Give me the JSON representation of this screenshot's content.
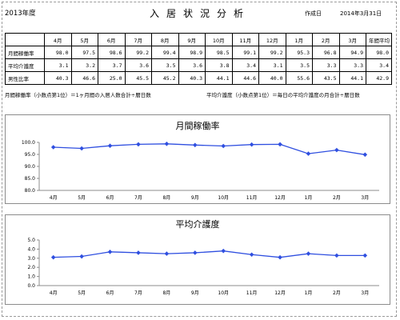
{
  "header": {
    "fiscal_year": "2013年度",
    "title": "入居状況分析",
    "created_label": "作成日",
    "created_date": "2014年3月31日"
  },
  "table": {
    "columns": [
      "4月",
      "5月",
      "6月",
      "7月",
      "8月",
      "9月",
      "10月",
      "11月",
      "12月",
      "1月",
      "2月",
      "3月",
      "年間平均"
    ],
    "rows": [
      {
        "label": "月間稼働率",
        "values": [
          "98.0",
          "97.5",
          "98.6",
          "99.2",
          "99.4",
          "98.9",
          "98.5",
          "99.1",
          "99.2",
          "95.3",
          "96.8",
          "94.9",
          "98.0"
        ]
      },
      {
        "label": "平均介護度",
        "values": [
          "3.1",
          "3.2",
          "3.7",
          "3.6",
          "3.5",
          "3.6",
          "3.8",
          "3.4",
          "3.1",
          "3.5",
          "3.3",
          "3.3",
          "3.4"
        ]
      },
      {
        "label": "男性比率",
        "values": [
          "40.3",
          "46.6",
          "25.0",
          "45.5",
          "45.2",
          "40.3",
          "44.1",
          "44.6",
          "40.0",
          "55.6",
          "43.5",
          "44.1",
          "42.9"
        ]
      }
    ]
  },
  "notes": {
    "occupancy": "月間稼働率（小数点第1位）＝1ヶ月間の入居人数合計÷暦日数",
    "care": "平均介護度（小数点第1位）＝毎日の平均介護度の月合計÷暦日数"
  },
  "colors": {
    "series": "#2f4fe0",
    "axis": "#8c8c8c"
  },
  "chart_data": [
    {
      "type": "line",
      "title": "月間稼働率",
      "categories": [
        "4月",
        "5月",
        "6月",
        "7月",
        "8月",
        "9月",
        "10月",
        "11月",
        "12月",
        "1月",
        "2月",
        "3月"
      ],
      "series": [
        {
          "values": [
            98.0,
            97.5,
            98.6,
            99.2,
            99.4,
            98.9,
            98.5,
            99.1,
            99.2,
            95.3,
            96.8,
            94.9
          ]
        }
      ],
      "ylim": [
        80,
        100
      ],
      "yticks": [
        "100.0",
        "95.0",
        "90.0",
        "85.0",
        "80.0"
      ],
      "xlabel": "",
      "ylabel": "",
      "grid": false,
      "legend": "none"
    },
    {
      "type": "line",
      "title": "平均介護度",
      "categories": [
        "4月",
        "5月",
        "6月",
        "7月",
        "8月",
        "9月",
        "10月",
        "11月",
        "12月",
        "1月",
        "2月",
        "3月"
      ],
      "series": [
        {
          "values": [
            3.1,
            3.2,
            3.7,
            3.6,
            3.5,
            3.6,
            3.8,
            3.4,
            3.1,
            3.5,
            3.3,
            3.3
          ]
        }
      ],
      "ylim": [
        0,
        5
      ],
      "yticks": [
        "5.0",
        "4.0",
        "3.0",
        "2.0",
        "1.0",
        "0.0"
      ],
      "xlabel": "",
      "ylabel": "",
      "grid": false,
      "legend": "none"
    }
  ]
}
